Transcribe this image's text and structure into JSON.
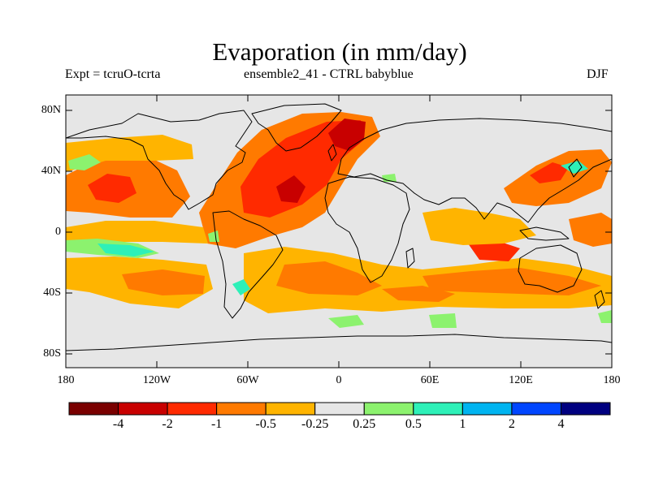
{
  "header": {
    "title": "Evaporation (in mm/day)",
    "experiment": "Expt = tcruO-tcrta",
    "ensemble": "ensemble2_41 - CTRL babyblue",
    "season": "DJF"
  },
  "map": {
    "lat_ticks": [
      "80N",
      "40N",
      "0",
      "40S",
      "80S"
    ],
    "lon_ticks": [
      "180",
      "120W",
      "60W",
      "0",
      "60E",
      "120E",
      "180"
    ],
    "ocean_color": "#e6e6e6",
    "coastline_color": "#000000"
  },
  "colorbar": {
    "colors": [
      "#7a0000",
      "#c80000",
      "#ff2a00",
      "#ff7a00",
      "#ffb400",
      "#e6e6e6",
      "#8cf26e",
      "#2ef0b8",
      "#00b4f0",
      "#0046ff",
      "#000080"
    ],
    "labels": [
      "-4",
      "-2",
      "-1",
      "-0.5",
      "-0.25",
      "0.25",
      "0.5",
      "1",
      "2",
      "4"
    ]
  }
}
